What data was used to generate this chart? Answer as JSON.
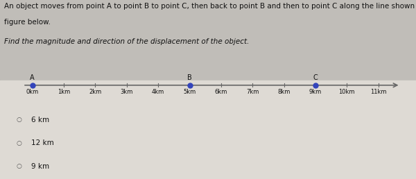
{
  "title_line1": "An object moves from point A to point B to point C, then back to point B and then to point C along the line shown in the",
  "title_line2": "figure below.",
  "question": "Find the magnitude and direction of the displacement of the object.",
  "axis_min": -0.5,
  "axis_max": 11.8,
  "tick_positions": [
    0,
    1,
    2,
    3,
    4,
    5,
    6,
    7,
    8,
    9,
    10,
    11
  ],
  "tick_labels": [
    "0km",
    "1km",
    "2km",
    "3km",
    "4km",
    "5km",
    "6km",
    "7km",
    "8km",
    "9km",
    "10km",
    "11km"
  ],
  "point_A": 0,
  "point_B": 5,
  "point_C": 9,
  "point_color": "#3344bb",
  "line_color": "#666666",
  "answer_choices": [
    "6 km",
    "12 km",
    "9 km"
  ],
  "bg_top": "#c0bdb8",
  "bg_bottom": "#d8d4cc",
  "text_color": "#111111",
  "font_size_title": 7.5,
  "font_size_question": 7.5,
  "font_size_ticks": 6,
  "font_size_answers": 7.5,
  "font_size_labels": 7
}
